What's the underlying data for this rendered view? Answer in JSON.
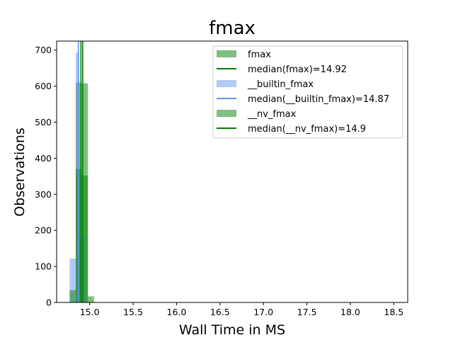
{
  "chart_data": {
    "type": "histogram",
    "title": "fmax",
    "xlabel": "Wall Time in MS",
    "ylabel": "Observations",
    "xlim": [
      14.62,
      18.66
    ],
    "ylim": [
      0,
      725
    ],
    "xticks": [
      15.0,
      15.5,
      16.0,
      16.5,
      17.0,
      17.5,
      18.0,
      18.5
    ],
    "xtick_labels": [
      "15.0",
      "15.5",
      "16.0",
      "16.5",
      "17.0",
      "17.5",
      "18.0",
      "18.5"
    ],
    "yticks": [
      0,
      100,
      200,
      300,
      400,
      500,
      600,
      700
    ],
    "ytick_labels": [
      "0",
      "100",
      "200",
      "300",
      "400",
      "500",
      "600",
      "700"
    ],
    "grid": false,
    "legend_position": "top-right",
    "series": [
      {
        "name": "fmax",
        "kind": "bars",
        "color": "#008000",
        "alpha": 0.5,
        "bars": [
          {
            "x0": 14.84,
            "x1": 14.91,
            "value": 610
          },
          {
            "x0": 14.91,
            "x1": 14.98,
            "value": 608
          }
        ]
      },
      {
        "name": "median(fmax)=14.92",
        "kind": "vline",
        "color": "#008000",
        "x": 14.92
      },
      {
        "name": "__builtin_fmax",
        "kind": "bars",
        "color": "#6495ed",
        "alpha": 0.5,
        "bars": [
          {
            "x0": 14.77,
            "x1": 14.84,
            "value": 122
          },
          {
            "x0": 14.84,
            "x1": 14.88,
            "value": 693
          },
          {
            "x0": 14.88,
            "x1": 14.95,
            "value": 185
          }
        ]
      },
      {
        "name": "median(__builtin_fmax)=14.87",
        "kind": "vline",
        "color": "#6495ed",
        "x": 14.87
      },
      {
        "name": "__nv_fmax",
        "kind": "bars",
        "color": "#008000",
        "alpha": 0.5,
        "bars": [
          {
            "x0": 14.77,
            "x1": 14.84,
            "value": 34
          },
          {
            "x0": 14.84,
            "x1": 14.91,
            "value": 370
          },
          {
            "x0": 14.91,
            "x1": 14.98,
            "value": 352
          },
          {
            "x0": 14.98,
            "x1": 15.05,
            "value": 17
          }
        ]
      },
      {
        "name": "median(__nv_fmax)=14.9",
        "kind": "vline",
        "color": "#008000",
        "x": 14.9
      }
    ],
    "legend": [
      {
        "label": "fmax",
        "kind": "patch",
        "color": "#008000",
        "alpha": 0.5
      },
      {
        "label": "median(fmax)=14.92",
        "kind": "line",
        "color": "#008000"
      },
      {
        "label": "__builtin_fmax",
        "kind": "patch",
        "color": "#6495ed",
        "alpha": 0.5
      },
      {
        "label": "median(__builtin_fmax)=14.87",
        "kind": "line",
        "color": "#6495ed"
      },
      {
        "label": "__nv_fmax",
        "kind": "patch",
        "color": "#008000",
        "alpha": 0.5
      },
      {
        "label": "median(__nv_fmax)=14.9",
        "kind": "line",
        "color": "#008000"
      }
    ]
  }
}
